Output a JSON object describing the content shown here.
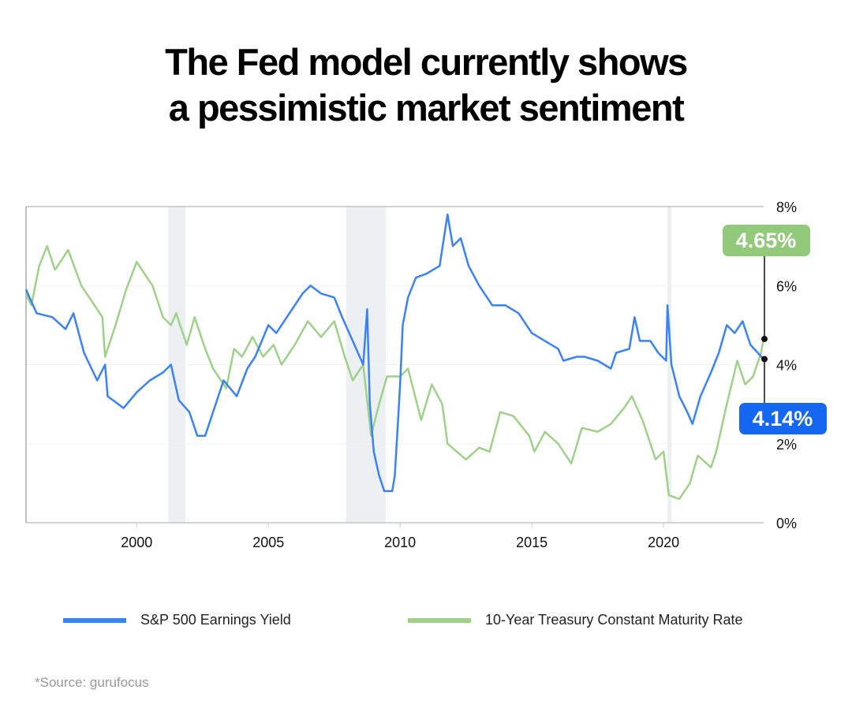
{
  "title_line1": "The Fed model currently shows",
  "title_line2": "a pessimistic market sentiment",
  "source": "*Source: gurufocus",
  "chart_data": {
    "type": "line",
    "title": "The Fed model currently shows a pessimistic market sentiment",
    "xlabel": "",
    "ylabel": "",
    "xlim": [
      1995.8,
      2023.8
    ],
    "ylim": [
      0,
      8
    ],
    "x_ticks": [
      2000,
      2005,
      2010,
      2015,
      2020
    ],
    "x_tick_labels": [
      "2000",
      "2005",
      "2010",
      "2015",
      "2020"
    ],
    "y_ticks": [
      0,
      2,
      4,
      6,
      8
    ],
    "y_tick_labels": [
      "0%",
      "2%",
      "4%",
      "6%",
      "8%"
    ],
    "y_axis_side": "right",
    "grid": true,
    "legend_position": "bottom",
    "recession_shading": [
      [
        2001.2,
        2001.85
      ],
      [
        2007.95,
        2009.45
      ],
      [
        2020.15,
        2020.3
      ]
    ],
    "recession_color": "#edf0f3",
    "series": [
      {
        "name": "S&P 500 Earnings Yield",
        "color": "#3b82f6",
        "x": [
          1995.8,
          1996.2,
          1996.8,
          1997.3,
          1997.6,
          1998.0,
          1998.5,
          1998.8,
          1998.9,
          1999.5,
          2000.0,
          2000.5,
          2001.0,
          2001.3,
          2001.6,
          2002.0,
          2002.3,
          2002.6,
          2002.9,
          2003.3,
          2003.8,
          2004.2,
          2004.5,
          2005.0,
          2005.3,
          2005.7,
          2006.3,
          2006.6,
          2007.0,
          2007.5,
          2007.8,
          2008.2,
          2008.6,
          2008.75,
          2008.85,
          2009.0,
          2009.2,
          2009.4,
          2009.7,
          2009.8,
          2010.0,
          2010.1,
          2010.3,
          2010.6,
          2011.0,
          2011.5,
          2011.8,
          2012.0,
          2012.3,
          2012.6,
          2013.0,
          2013.5,
          2014.0,
          2014.5,
          2015.0,
          2015.5,
          2016.0,
          2016.2,
          2016.7,
          2017.0,
          2017.5,
          2018.0,
          2018.2,
          2018.7,
          2018.9,
          2019.1,
          2019.5,
          2019.8,
          2020.1,
          2020.15,
          2020.3,
          2020.6,
          2020.9,
          2021.1,
          2021.4,
          2021.8,
          2022.1,
          2022.4,
          2022.7,
          2023.0,
          2023.3,
          2023.8
        ],
        "values": [
          5.9,
          5.3,
          5.2,
          4.9,
          5.3,
          4.3,
          3.6,
          4.0,
          3.2,
          2.9,
          3.3,
          3.6,
          3.8,
          4.0,
          3.1,
          2.8,
          2.2,
          2.2,
          2.8,
          3.6,
          3.2,
          3.9,
          4.2,
          5.0,
          4.8,
          5.2,
          5.8,
          6.0,
          5.8,
          5.7,
          5.2,
          4.6,
          4.0,
          5.4,
          3.0,
          1.8,
          1.2,
          0.8,
          0.8,
          1.2,
          3.5,
          5.0,
          5.7,
          6.2,
          6.3,
          6.5,
          7.8,
          7.0,
          7.2,
          6.5,
          6.0,
          5.5,
          5.5,
          5.3,
          4.8,
          4.6,
          4.4,
          4.1,
          4.2,
          4.2,
          4.1,
          3.9,
          4.3,
          4.4,
          5.2,
          4.6,
          4.6,
          4.3,
          4.1,
          5.5,
          4.0,
          3.2,
          2.8,
          2.5,
          3.2,
          3.8,
          4.3,
          5.0,
          4.8,
          5.1,
          4.5,
          4.14
        ]
      },
      {
        "name": "10-Year Treasury Constant Maturity Rate",
        "color": "#9fd18a",
        "x": [
          1995.8,
          1996.0,
          1996.3,
          1996.6,
          1996.9,
          1997.2,
          1997.4,
          1997.9,
          1998.3,
          1998.7,
          1998.8,
          1999.2,
          1999.6,
          2000.0,
          2000.2,
          2000.6,
          2001.0,
          2001.3,
          2001.5,
          2001.9,
          2002.2,
          2002.6,
          2002.9,
          2003.4,
          2003.7,
          2004.0,
          2004.4,
          2004.8,
          2005.2,
          2005.5,
          2006.0,
          2006.5,
          2007.0,
          2007.5,
          2007.9,
          2008.2,
          2008.6,
          2008.9,
          2009.2,
          2009.5,
          2010.0,
          2010.3,
          2010.8,
          2011.2,
          2011.6,
          2011.8,
          2012.5,
          2013.0,
          2013.4,
          2013.8,
          2014.3,
          2014.9,
          2015.1,
          2015.5,
          2016.0,
          2016.5,
          2016.9,
          2017.5,
          2018.0,
          2018.5,
          2018.8,
          2019.2,
          2019.7,
          2020.0,
          2020.2,
          2020.6,
          2021.0,
          2021.3,
          2021.8,
          2022.0,
          2022.4,
          2022.8,
          2023.1,
          2023.4,
          2023.7,
          2023.8
        ],
        "values": [
          5.8,
          5.5,
          6.5,
          7.0,
          6.4,
          6.7,
          6.9,
          6.0,
          5.6,
          5.2,
          4.2,
          5.0,
          5.9,
          6.6,
          6.4,
          6.0,
          5.2,
          5.0,
          5.3,
          4.5,
          5.2,
          4.4,
          3.9,
          3.4,
          4.4,
          4.2,
          4.7,
          4.2,
          4.5,
          4.0,
          4.5,
          5.1,
          4.7,
          5.1,
          4.2,
          3.6,
          4.0,
          2.2,
          3.0,
          3.7,
          3.7,
          3.9,
          2.6,
          3.5,
          3.0,
          2.0,
          1.6,
          1.9,
          1.8,
          2.8,
          2.7,
          2.2,
          1.8,
          2.3,
          2.0,
          1.5,
          2.4,
          2.3,
          2.5,
          2.9,
          3.2,
          2.6,
          1.6,
          1.8,
          0.7,
          0.6,
          1.0,
          1.7,
          1.4,
          1.8,
          3.0,
          4.1,
          3.5,
          3.7,
          4.3,
          4.65
        ]
      }
    ],
    "callouts": [
      {
        "series": "10-Year Treasury Constant Maturity Rate",
        "value": 4.65,
        "label": "4.65%",
        "color": "#93c97b"
      },
      {
        "series": "S&P 500 Earnings Yield",
        "value": 4.14,
        "label": "4.14%",
        "color": "#1566f0"
      }
    ]
  }
}
